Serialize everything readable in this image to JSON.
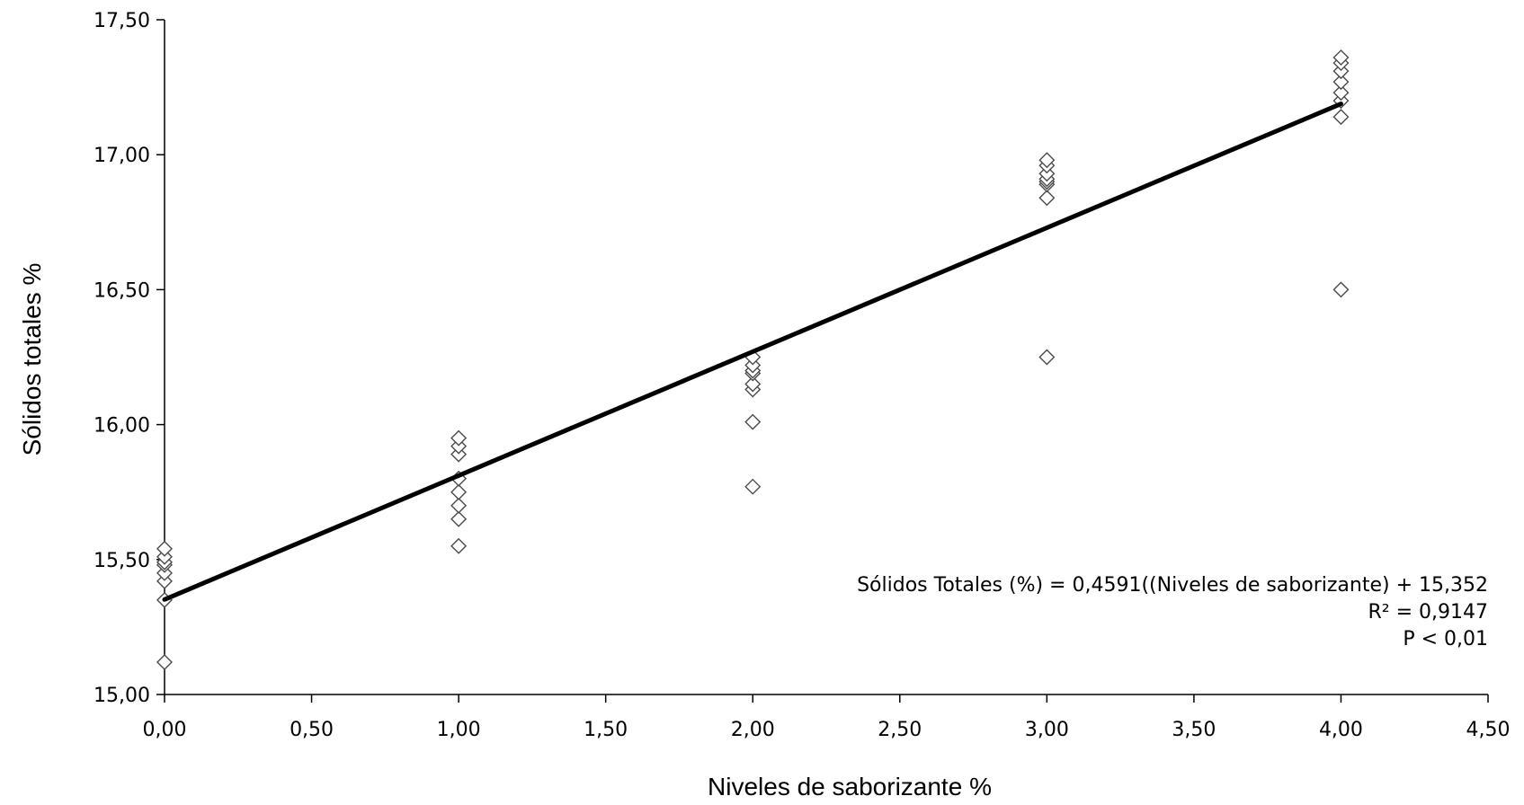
{
  "chart_data": {
    "type": "scatter",
    "title": "",
    "xlabel": "Niveles de saborizante %",
    "ylabel": "Sólidos totales %",
    "xlim": [
      0,
      4.5
    ],
    "ylim": [
      15.0,
      17.5
    ],
    "x_ticks": [
      "0,00",
      "0,50",
      "1,00",
      "1,50",
      "2,00",
      "2,50",
      "3,00",
      "3,50",
      "4,00",
      "4,50"
    ],
    "y_ticks": [
      "15,00",
      "15,50",
      "16,00",
      "16,50",
      "17,00",
      "17,50"
    ],
    "grid": false,
    "legend": "none",
    "marker": "diamond-open",
    "points": [
      {
        "x": 0,
        "y": 15.12
      },
      {
        "x": 0,
        "y": 15.35
      },
      {
        "x": 0,
        "y": 15.42
      },
      {
        "x": 0,
        "y": 15.45
      },
      {
        "x": 0,
        "y": 15.48
      },
      {
        "x": 0,
        "y": 15.49
      },
      {
        "x": 0,
        "y": 15.51
      },
      {
        "x": 0,
        "y": 15.54
      },
      {
        "x": 1,
        "y": 15.55
      },
      {
        "x": 1,
        "y": 15.65
      },
      {
        "x": 1,
        "y": 15.7
      },
      {
        "x": 1,
        "y": 15.75
      },
      {
        "x": 1,
        "y": 15.8
      },
      {
        "x": 1,
        "y": 15.89
      },
      {
        "x": 1,
        "y": 15.92
      },
      {
        "x": 1,
        "y": 15.95
      },
      {
        "x": 2,
        "y": 15.77
      },
      {
        "x": 2,
        "y": 16.01
      },
      {
        "x": 2,
        "y": 16.13
      },
      {
        "x": 2,
        "y": 16.15
      },
      {
        "x": 2,
        "y": 16.19
      },
      {
        "x": 2,
        "y": 16.2
      },
      {
        "x": 2,
        "y": 16.22
      },
      {
        "x": 2,
        "y": 16.25
      },
      {
        "x": 3,
        "y": 16.25
      },
      {
        "x": 3,
        "y": 16.84
      },
      {
        "x": 3,
        "y": 16.89
      },
      {
        "x": 3,
        "y": 16.9
      },
      {
        "x": 3,
        "y": 16.91
      },
      {
        "x": 3,
        "y": 16.93
      },
      {
        "x": 3,
        "y": 16.96
      },
      {
        "x": 3,
        "y": 16.98
      },
      {
        "x": 4,
        "y": 16.5
      },
      {
        "x": 4,
        "y": 17.14
      },
      {
        "x": 4,
        "y": 17.2
      },
      {
        "x": 4,
        "y": 17.23
      },
      {
        "x": 4,
        "y": 17.27
      },
      {
        "x": 4,
        "y": 17.31
      },
      {
        "x": 4,
        "y": 17.34
      },
      {
        "x": 4,
        "y": 17.36
      }
    ],
    "trendline": {
      "slope": 0.4591,
      "intercept": 15.352,
      "x_range": [
        0,
        4
      ]
    },
    "annotations": [
      "Sólidos Totales (%) = 0,4591((Niveles de saborizante)  + 15,352",
      "R² = 0,9147",
      "P < 0,01"
    ],
    "line_color": "#000000",
    "marker_color": "#4a4a4a"
  }
}
